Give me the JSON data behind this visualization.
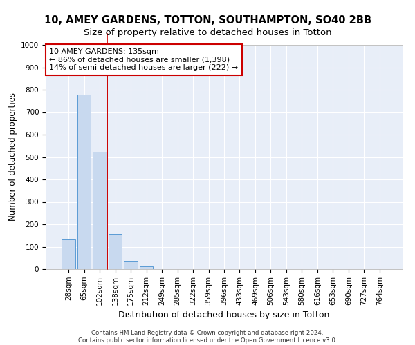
{
  "title_line1": "10, AMEY GARDENS, TOTTON, SOUTHAMPTON, SO40 2BB",
  "title_line2": "Size of property relative to detached houses in Totton",
  "xlabel": "Distribution of detached houses by size in Totton",
  "ylabel": "Number of detached properties",
  "footer_line1": "Contains HM Land Registry data © Crown copyright and database right 2024.",
  "footer_line2": "Contains public sector information licensed under the Open Government Licence v3.0.",
  "bin_labels": [
    "28sqm",
    "65sqm",
    "102sqm",
    "138sqm",
    "175sqm",
    "212sqm",
    "249sqm",
    "285sqm",
    "322sqm",
    "359sqm",
    "396sqm",
    "433sqm",
    "469sqm",
    "506sqm",
    "543sqm",
    "580sqm",
    "616sqm",
    "653sqm",
    "690sqm",
    "727sqm",
    "764sqm"
  ],
  "bar_values": [
    133,
    778,
    522,
    157,
    37,
    13,
    0,
    0,
    0,
    0,
    0,
    0,
    0,
    0,
    0,
    0,
    0,
    0,
    0,
    0,
    0
  ],
  "bar_color": "#c8d9ef",
  "bar_edge_color": "#5b9bd5",
  "vline_color": "#cc0000",
  "annotation_text": "10 AMEY GARDENS: 135sqm\n← 86% of detached houses are smaller (1,398)\n14% of semi-detached houses are larger (222) →",
  "annotation_box_color": "white",
  "annotation_box_edge": "#cc0000",
  "ylim": [
    0,
    1000
  ],
  "yticks": [
    0,
    100,
    200,
    300,
    400,
    500,
    600,
    700,
    800,
    900,
    1000
  ],
  "background_color": "#e8eef8",
  "grid_color": "white",
  "title_fontsize": 10.5,
  "subtitle_fontsize": 9.5,
  "axis_label_fontsize": 8.5,
  "tick_fontsize": 7.5,
  "annotation_fontsize": 8,
  "vline_xindex": 2.5
}
